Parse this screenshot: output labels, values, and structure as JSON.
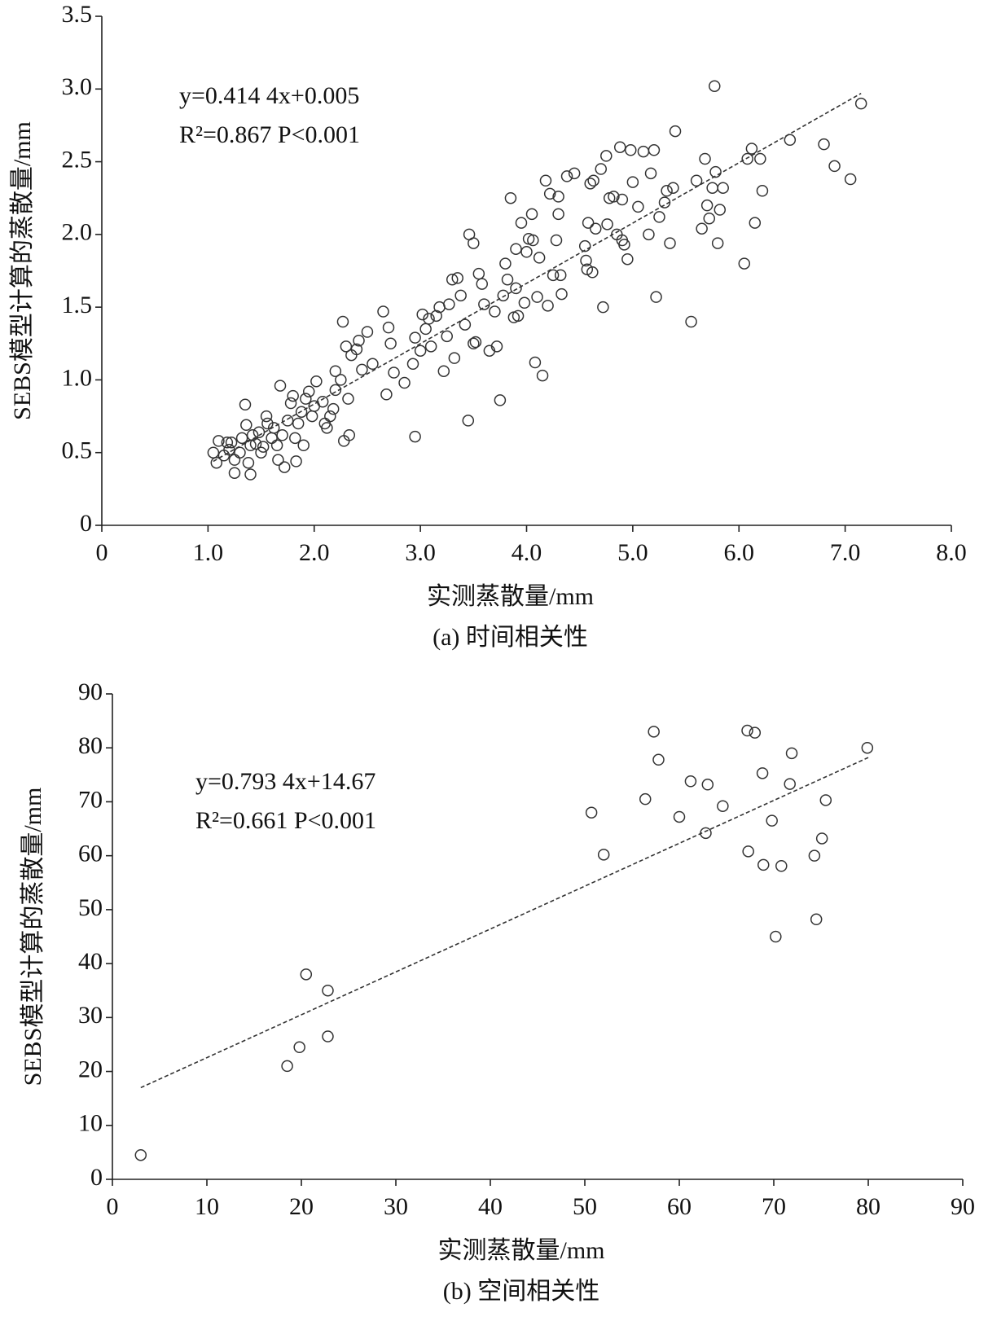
{
  "chart_data": [
    {
      "type": "scatter",
      "caption": "(a) 时间相关性",
      "x_label": "实测蒸散量/mm",
      "y_label": "SEBS模型计算的蒸散量/mm",
      "annotations": [
        "y=0.414 4x+0.005",
        "R²=0.867   P<0.001"
      ],
      "xlim": [
        0,
        8
      ],
      "ylim": [
        0,
        3.5
      ],
      "xticks": [
        0,
        {
          "value": 1,
          "label": "1.0"
        },
        {
          "value": 2,
          "label": "2.0"
        },
        {
          "value": 3,
          "label": "3.0"
        },
        {
          "value": 4,
          "label": "4.0"
        },
        {
          "value": 5,
          "label": "5.0"
        },
        {
          "value": 6,
          "label": "6.0"
        },
        {
          "value": 7,
          "label": "7.0"
        },
        {
          "value": 8,
          "label": "8.0"
        }
      ],
      "yticks": [
        0,
        0.5,
        {
          "value": 1,
          "label": "1.0"
        },
        1.5,
        {
          "value": 2,
          "label": "2.0"
        },
        2.5,
        {
          "value": 3,
          "label": "3.0"
        },
        3.5
      ],
      "fit_line": {
        "x": [
          1.05,
          7.15
        ],
        "y": [
          0.44,
          2.97
        ]
      },
      "x": [
        1.05,
        1.08,
        1.1,
        1.15,
        1.18,
        1.2,
        1.22,
        1.25,
        1.25,
        1.3,
        1.32,
        1.35,
        1.36,
        1.38,
        1.4,
        1.4,
        1.42,
        1.45,
        1.48,
        1.5,
        1.52,
        1.55,
        1.56,
        1.6,
        1.62,
        1.65,
        1.66,
        1.68,
        1.7,
        1.72,
        1.75,
        1.78,
        1.8,
        1.82,
        1.83,
        1.85,
        1.88,
        1.9,
        1.92,
        1.95,
        1.98,
        2.0,
        2.02,
        2.08,
        2.1,
        2.12,
        2.15,
        2.18,
        2.2,
        2.2,
        2.25,
        2.27,
        2.28,
        2.3,
        2.32,
        2.33,
        2.35,
        2.4,
        2.42,
        2.45,
        2.5,
        2.55,
        2.65,
        2.68,
        2.7,
        2.72,
        2.75,
        2.85,
        2.93,
        2.95,
        2.95,
        3.0,
        3.02,
        3.05,
        3.08,
        3.1,
        3.15,
        3.18,
        3.22,
        3.25,
        3.27,
        3.3,
        3.32,
        3.35,
        3.38,
        3.42,
        3.45,
        3.46,
        3.5,
        3.5,
        3.52,
        3.55,
        3.58,
        3.6,
        3.65,
        3.7,
        3.72,
        3.75,
        3.78,
        3.8,
        3.82,
        3.85,
        3.88,
        3.9,
        3.9,
        3.92,
        3.95,
        3.98,
        4.0,
        4.02,
        4.05,
        4.06,
        4.08,
        4.1,
        4.12,
        4.15,
        4.18,
        4.2,
        4.22,
        4.25,
        4.28,
        4.3,
        4.3,
        4.32,
        4.33,
        4.38,
        4.45,
        4.55,
        4.56,
        4.57,
        4.58,
        4.6,
        4.62,
        4.63,
        4.65,
        4.7,
        4.72,
        4.75,
        4.76,
        4.78,
        4.82,
        4.85,
        4.88,
        4.9,
        4.9,
        4.92,
        4.95,
        4.98,
        5.0,
        5.05,
        5.1,
        5.15,
        5.17,
        5.2,
        5.22,
        5.25,
        5.3,
        5.32,
        5.35,
        5.38,
        5.4,
        5.55,
        5.6,
        5.65,
        5.68,
        5.7,
        5.72,
        5.75,
        5.78,
        5.8,
        5.82,
        5.85,
        5.77,
        6.05,
        6.08,
        6.12,
        6.15,
        6.2,
        6.22,
        6.48,
        6.8,
        6.9,
        7.05,
        7.15
      ],
      "values": [
        0.5,
        0.43,
        0.58,
        0.48,
        0.57,
        0.52,
        0.57,
        0.36,
        0.45,
        0.5,
        0.6,
        0.83,
        0.69,
        0.43,
        0.35,
        0.55,
        0.62,
        0.56,
        0.64,
        0.5,
        0.54,
        0.75,
        0.7,
        0.6,
        0.67,
        0.55,
        0.45,
        0.96,
        0.62,
        0.4,
        0.72,
        0.84,
        0.89,
        0.6,
        0.44,
        0.7,
        0.78,
        0.55,
        0.87,
        0.92,
        0.75,
        0.82,
        0.99,
        0.85,
        0.7,
        0.67,
        0.75,
        0.8,
        0.93,
        1.06,
        1.0,
        1.4,
        0.58,
        1.23,
        0.87,
        0.62,
        1.17,
        1.21,
        1.27,
        1.07,
        1.33,
        1.11,
        1.47,
        0.9,
        1.36,
        1.25,
        1.05,
        0.98,
        1.11,
        1.29,
        0.61,
        1.2,
        1.45,
        1.35,
        1.42,
        1.23,
        1.44,
        1.5,
        1.06,
        1.3,
        1.52,
        1.69,
        1.15,
        1.7,
        1.58,
        1.38,
        0.72,
        2.0,
        1.94,
        1.25,
        1.26,
        1.73,
        1.66,
        1.52,
        1.2,
        1.47,
        1.23,
        0.86,
        1.58,
        1.8,
        1.69,
        2.25,
        1.43,
        1.63,
        1.9,
        1.44,
        2.08,
        1.53,
        1.88,
        1.97,
        2.14,
        1.96,
        1.12,
        1.57,
        1.84,
        1.03,
        2.37,
        1.51,
        2.28,
        1.72,
        1.96,
        2.14,
        2.26,
        1.72,
        1.59,
        2.4,
        2.42,
        1.92,
        1.82,
        1.76,
        2.08,
        2.35,
        1.74,
        2.37,
        2.04,
        2.45,
        1.5,
        2.54,
        2.07,
        2.25,
        2.26,
        2.0,
        2.6,
        1.96,
        2.24,
        1.93,
        1.83,
        2.58,
        2.36,
        2.19,
        2.57,
        2.0,
        2.42,
        2.58,
        1.57,
        2.12,
        2.22,
        2.3,
        1.94,
        2.32,
        2.71,
        1.4,
        2.37,
        2.04,
        2.52,
        2.2,
        2.11,
        2.32,
        2.43,
        1.94,
        2.17,
        2.32,
        3.02,
        1.8,
        2.52,
        2.59,
        2.08,
        2.52,
        2.3,
        2.65,
        2.62,
        2.47,
        2.38,
        2.9
      ]
    },
    {
      "type": "scatter",
      "caption": "(b) 空间相关性",
      "x_label": "实测蒸散量/mm",
      "y_label": "SEBS模型计算的蒸散量/mm",
      "annotations": [
        "y=0.793 4x+14.67",
        "R²=0.661   P<0.001"
      ],
      "xlim": [
        0,
        90
      ],
      "ylim": [
        0,
        90
      ],
      "xticks": [
        0,
        10,
        20,
        30,
        40,
        50,
        60,
        70,
        80,
        90
      ],
      "yticks": [
        0,
        10,
        20,
        30,
        40,
        50,
        60,
        70,
        80,
        90
      ],
      "fit_line": {
        "x": [
          3,
          80
        ],
        "y": [
          17,
          78.2
        ]
      },
      "x": [
        3,
        18.5,
        19.8,
        20.5,
        22.8,
        22.8,
        50.7,
        52,
        56.4,
        57.3,
        57.8,
        60,
        61.2,
        62.8,
        63,
        64.6,
        67.3,
        67.2,
        68,
        68.8,
        68.9,
        69.8,
        70.2,
        70.8,
        71.7,
        71.9,
        74.3,
        74.5,
        75.1,
        75.5,
        79.9
      ],
      "values": [
        4.5,
        21,
        24.5,
        38,
        35,
        26.5,
        68,
        60.2,
        70.5,
        83,
        77.8,
        67.2,
        73.8,
        64.2,
        73.2,
        69.2,
        60.8,
        83.2,
        82.8,
        75.3,
        58.3,
        66.5,
        45,
        58.1,
        73.3,
        79,
        60,
        48.2,
        63.2,
        70.3,
        80
      ]
    }
  ]
}
